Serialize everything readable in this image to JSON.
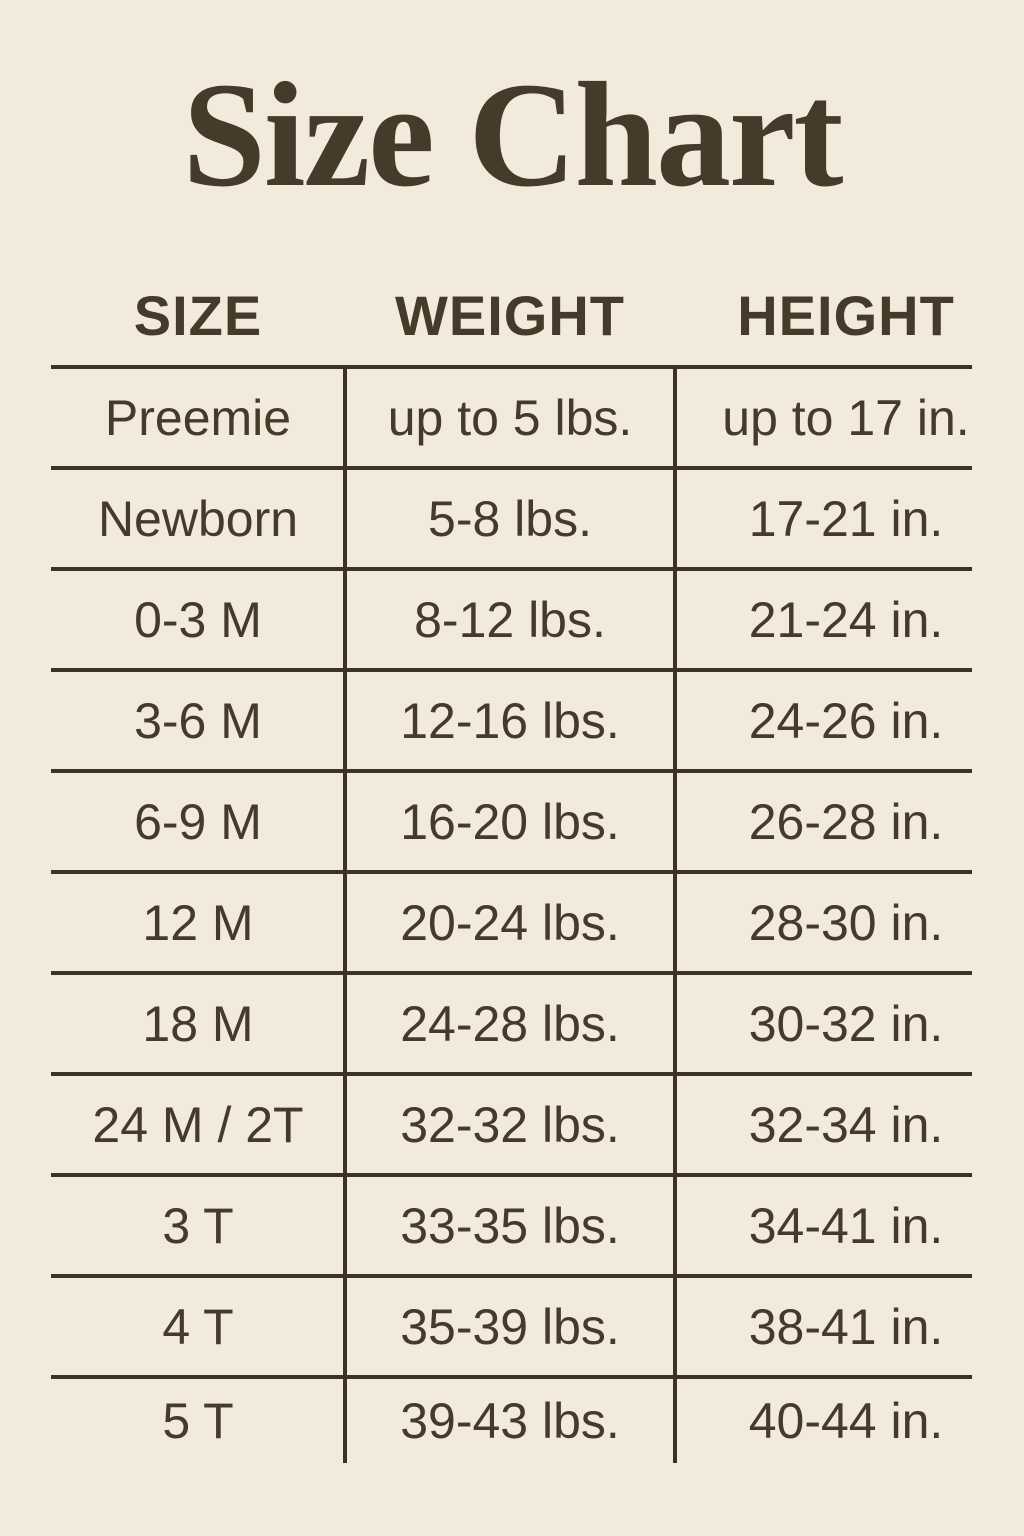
{
  "chart_data": {
    "type": "table",
    "title": "Size Chart",
    "columns": [
      "SIZE",
      "WEIGHT",
      "HEIGHT"
    ],
    "rows": [
      [
        "Preemie",
        "up to 5 lbs.",
        "up to 17 in."
      ],
      [
        "Newborn",
        "5-8 lbs.",
        "17-21 in."
      ],
      [
        "0-3 M",
        "8-12 lbs.",
        "21-24 in."
      ],
      [
        "3-6 M",
        "12-16 lbs.",
        "24-26 in."
      ],
      [
        "6-9 M",
        "16-20 lbs.",
        "26-28 in."
      ],
      [
        "12 M",
        "20-24 lbs.",
        "28-30 in."
      ],
      [
        "18 M",
        "24-28 lbs.",
        "30-32 in."
      ],
      [
        "24 M / 2T",
        "32-32 lbs.",
        "32-34 in."
      ],
      [
        "3 T",
        "33-35 lbs.",
        "34-41 in."
      ],
      [
        "4 T",
        "35-39 lbs.",
        "38-41 in."
      ],
      [
        "5 T",
        "39-43 lbs.",
        "40-44 in."
      ]
    ],
    "layout": {
      "grid": "ruled rows, two inner column dividers, no outer side borders",
      "legend": "none"
    }
  },
  "colors": {
    "bg": "#f2ebdc",
    "ink": "#463a2a",
    "line": "#3d3226"
  }
}
